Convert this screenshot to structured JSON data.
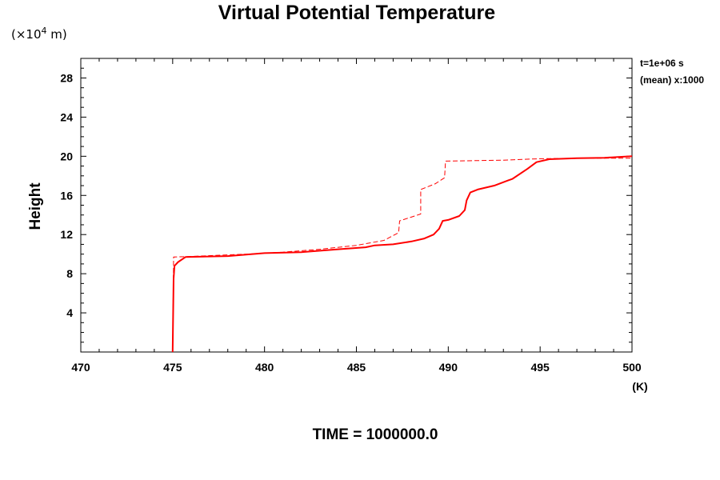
{
  "chart_data": {
    "type": "line",
    "title": "Virtual Potential Temperature",
    "ylabel": "Height",
    "y_unit_prefix": "(×10",
    "y_unit_exp": "4",
    "y_unit_suffix": " m)",
    "xlabel_unit": "(K)",
    "xlim": [
      470,
      500
    ],
    "ylim": [
      0,
      30
    ],
    "x_ticks": [
      470,
      475,
      480,
      485,
      490,
      495,
      500
    ],
    "y_ticks": [
      4,
      8,
      12,
      16,
      20,
      24,
      28
    ],
    "grid": false,
    "legend": null,
    "annotations": [
      "t=1e+06 s",
      "(mean) x:1000"
    ],
    "footer": "TIME = 1000000.0",
    "series": [
      {
        "style": "solid",
        "color": "#ff0000",
        "points": [
          [
            475.0,
            0.0
          ],
          [
            475.05,
            7.5
          ],
          [
            475.1,
            8.8
          ],
          [
            475.3,
            9.2
          ],
          [
            475.7,
            9.7
          ],
          [
            478.0,
            9.8
          ],
          [
            480.0,
            10.1
          ],
          [
            482.0,
            10.2
          ],
          [
            484.0,
            10.5
          ],
          [
            485.5,
            10.7
          ],
          [
            486.0,
            10.9
          ],
          [
            487.0,
            11.0
          ],
          [
            488.0,
            11.3
          ],
          [
            488.7,
            11.6
          ],
          [
            489.2,
            12.0
          ],
          [
            489.5,
            12.6
          ],
          [
            489.7,
            13.4
          ],
          [
            490.0,
            13.5
          ],
          [
            490.6,
            13.9
          ],
          [
            490.9,
            14.5
          ],
          [
            491.0,
            15.5
          ],
          [
            491.2,
            16.3
          ],
          [
            491.6,
            16.6
          ],
          [
            492.5,
            17.0
          ],
          [
            493.5,
            17.7
          ],
          [
            494.3,
            18.7
          ],
          [
            494.8,
            19.4
          ],
          [
            495.5,
            19.7
          ],
          [
            497.0,
            19.8
          ],
          [
            498.5,
            19.85
          ],
          [
            500.0,
            20.0
          ]
        ]
      },
      {
        "style": "dashed",
        "color": "#ff0000",
        "points": [
          [
            475.0,
            0.0
          ],
          [
            475.05,
            9.7
          ],
          [
            476.5,
            9.8
          ],
          [
            479.0,
            10.0
          ],
          [
            481.0,
            10.2
          ],
          [
            483.0,
            10.5
          ],
          [
            485.0,
            10.9
          ],
          [
            486.5,
            11.4
          ],
          [
            487.3,
            12.2
          ],
          [
            487.35,
            13.4
          ],
          [
            488.5,
            14.1
          ],
          [
            488.5,
            16.6
          ],
          [
            489.3,
            17.2
          ],
          [
            489.8,
            17.8
          ],
          [
            489.85,
            19.5
          ],
          [
            493.0,
            19.6
          ],
          [
            495.0,
            19.75
          ],
          [
            497.0,
            19.8
          ],
          [
            500.0,
            19.8
          ]
        ]
      }
    ]
  }
}
